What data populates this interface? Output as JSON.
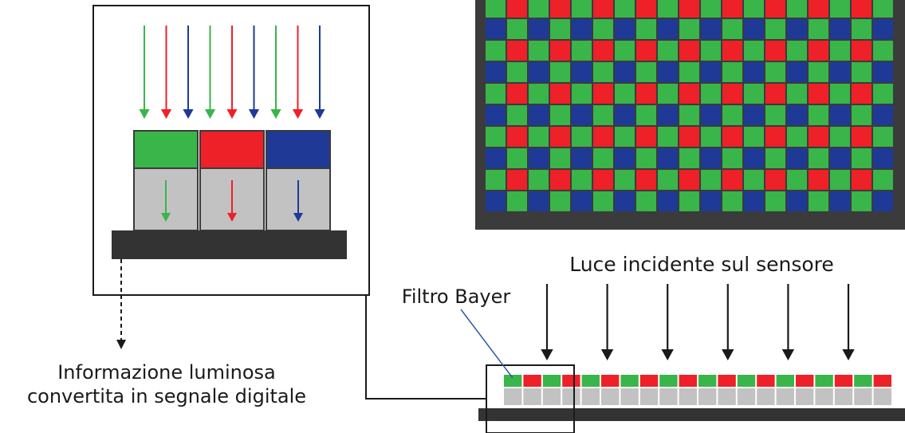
{
  "labels": {
    "incident_light": "Luce incidente sul sensore",
    "bayer_filter": "Filtro Bayer",
    "output_line1": "Informazione luminosa",
    "output_line2": "convertita in segnale digitale"
  },
  "colors": {
    "red": "#ee2028",
    "green": "#39b54a",
    "blue": "#1e3a96",
    "sensor_frame": "#3b3b3b",
    "photosite_gray": "#c2c2c2",
    "substrate_dark": "#333333",
    "line": "#1a1a1a",
    "leader_blue": "#2e5aa8"
  },
  "bayer_pattern": [
    [
      "green",
      "red"
    ],
    [
      "blue",
      "green"
    ]
  ],
  "detail_filters": [
    "green",
    "red",
    "blue"
  ],
  "detail_arrow_colors": [
    "green",
    "red",
    "blue",
    "green",
    "red",
    "blue",
    "green",
    "red",
    "blue"
  ],
  "strip_pattern": [
    "green",
    "red"
  ],
  "incident_arrow_count": 6
}
